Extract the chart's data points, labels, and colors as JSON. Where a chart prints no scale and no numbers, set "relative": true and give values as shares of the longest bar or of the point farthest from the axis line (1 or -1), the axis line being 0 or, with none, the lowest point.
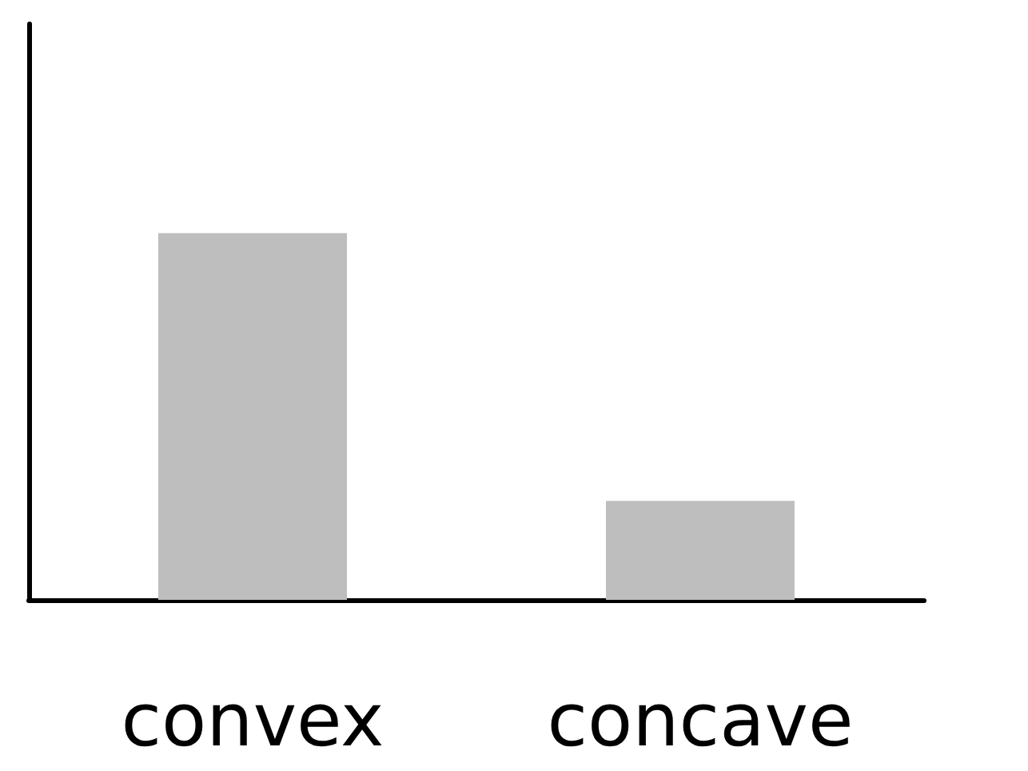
{
  "chart_data": {
    "type": "bar",
    "relative": true,
    "categories": [
      "convex",
      "concave"
    ],
    "values": [
      1,
      0.27
    ],
    "color": "#bebebe",
    "grid": false
  }
}
